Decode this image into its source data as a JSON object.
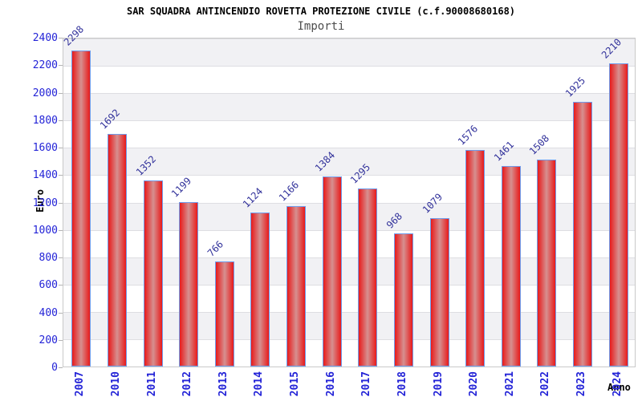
{
  "title": "SAR SQUADRA ANTINCENDIO ROVETTA PROTEZIONE CIVILE (c.f.90008680168)",
  "subtitle": "Importi",
  "chart_data": {
    "type": "bar",
    "title": "SAR SQUADRA ANTINCENDIO ROVETTA PROTEZIONE CIVILE (c.f.90008680168)",
    "subtitle": "Importi",
    "categories": [
      "2007",
      "2010",
      "2011",
      "2012",
      "2013",
      "2014",
      "2015",
      "2016",
      "2017",
      "2018",
      "2019",
      "2020",
      "2021",
      "2022",
      "2023",
      "2024"
    ],
    "values": [
      2298,
      1692,
      1352,
      1199,
      766,
      1124,
      1166,
      1384,
      1295,
      968,
      1079,
      1576,
      1461,
      1508,
      1925,
      2210
    ],
    "xlabel": "Anno",
    "ylabel": "Euro",
    "ylim": [
      0,
      2400
    ],
    "ytick_step": 200,
    "legend": "none",
    "grid": "horizontal alternating bands every 200",
    "value_label_rotation_deg": 45,
    "xtick_rotation_deg": 90,
    "colors": {
      "bar_edge": "#e81a1a",
      "bar_center": "#d69090",
      "bar_border": "#6f9ceb",
      "tick_label_blue": "#2323d7",
      "value_label_navy": "#32329b",
      "band_gray": "#f1f1f4",
      "plot_border": "#c9c9c9",
      "subtitle_gray": "#4d4d4d",
      "title_black": "#000000"
    }
  }
}
